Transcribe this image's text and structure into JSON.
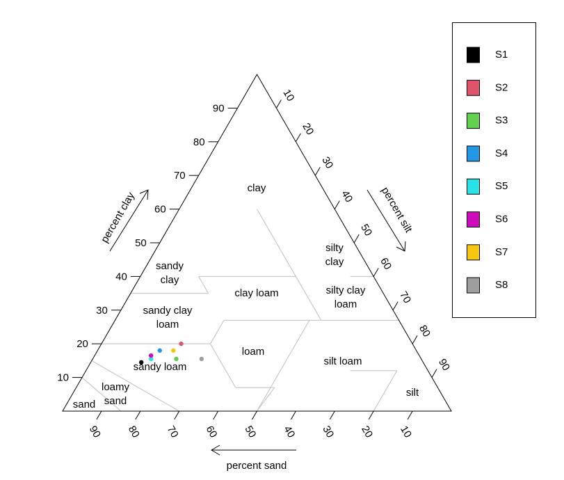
{
  "chart_data": {
    "type": "scatter",
    "subtype": "soil-texture-triangle",
    "axes": {
      "clay": {
        "label": "percent clay",
        "ticks": [
          "10",
          "20",
          "30",
          "40",
          "50",
          "60",
          "70",
          "80",
          "90"
        ],
        "range": [
          0,
          100
        ]
      },
      "silt": {
        "label": "percent silt",
        "ticks": [
          "10",
          "20",
          "30",
          "40",
          "50",
          "60",
          "70",
          "80",
          "90"
        ],
        "range": [
          0,
          100
        ]
      },
      "sand": {
        "label": "percent sand",
        "ticks": [
          "90",
          "80",
          "70",
          "60",
          "50",
          "40",
          "30",
          "20",
          "10"
        ],
        "range": [
          0,
          100
        ]
      }
    },
    "regions": [
      {
        "name": "clay",
        "lines": [
          "clay"
        ]
      },
      {
        "name": "silty clay",
        "lines": [
          "silty",
          "clay"
        ]
      },
      {
        "name": "sandy clay",
        "lines": [
          "sandy",
          "clay"
        ]
      },
      {
        "name": "silty clay loam",
        "lines": [
          "silty clay",
          "loam"
        ]
      },
      {
        "name": "clay loam",
        "lines": [
          "clay loam"
        ]
      },
      {
        "name": "sandy clay loam",
        "lines": [
          "sandy clay",
          "loam"
        ]
      },
      {
        "name": "loam",
        "lines": [
          "loam"
        ]
      },
      {
        "name": "silt loam",
        "lines": [
          "silt loam"
        ]
      },
      {
        "name": "sandy loam",
        "lines": [
          "sandy loam"
        ]
      },
      {
        "name": "silt",
        "lines": [
          "silt"
        ]
      },
      {
        "name": "loamy sand",
        "lines": [
          "loamy",
          "sand"
        ]
      },
      {
        "name": "sand",
        "lines": [
          "sand"
        ]
      }
    ],
    "series": [
      {
        "name": "S1",
        "color": "#000000",
        "sand": 72.5,
        "silt": 13,
        "clay": 14.5
      },
      {
        "name": "S2",
        "color": "#DF536B",
        "sand": 59.5,
        "silt": 20.5,
        "clay": 20
      },
      {
        "name": "S3",
        "color": "#61D04F",
        "sand": 63,
        "silt": 21.5,
        "clay": 15.5
      },
      {
        "name": "S4",
        "color": "#2297E6",
        "sand": 66,
        "silt": 16,
        "clay": 18
      },
      {
        "name": "S5",
        "color": "#28E2E5",
        "sand": 69.5,
        "silt": 15,
        "clay": 15.5
      },
      {
        "name": "S6",
        "color": "#CD0BBC",
        "sand": 69,
        "silt": 14.5,
        "clay": 16.5
      },
      {
        "name": "S7",
        "color": "#F5C710",
        "sand": 62.5,
        "silt": 19.5,
        "clay": 18
      },
      {
        "name": "S8",
        "color": "#9E9E9E",
        "sand": 56.5,
        "silt": 28,
        "clay": 15.5
      }
    ],
    "legend": {
      "placement": "right",
      "entries": [
        "S1",
        "S2",
        "S3",
        "S4",
        "S5",
        "S6",
        "S7",
        "S8"
      ]
    },
    "grid": false
  }
}
